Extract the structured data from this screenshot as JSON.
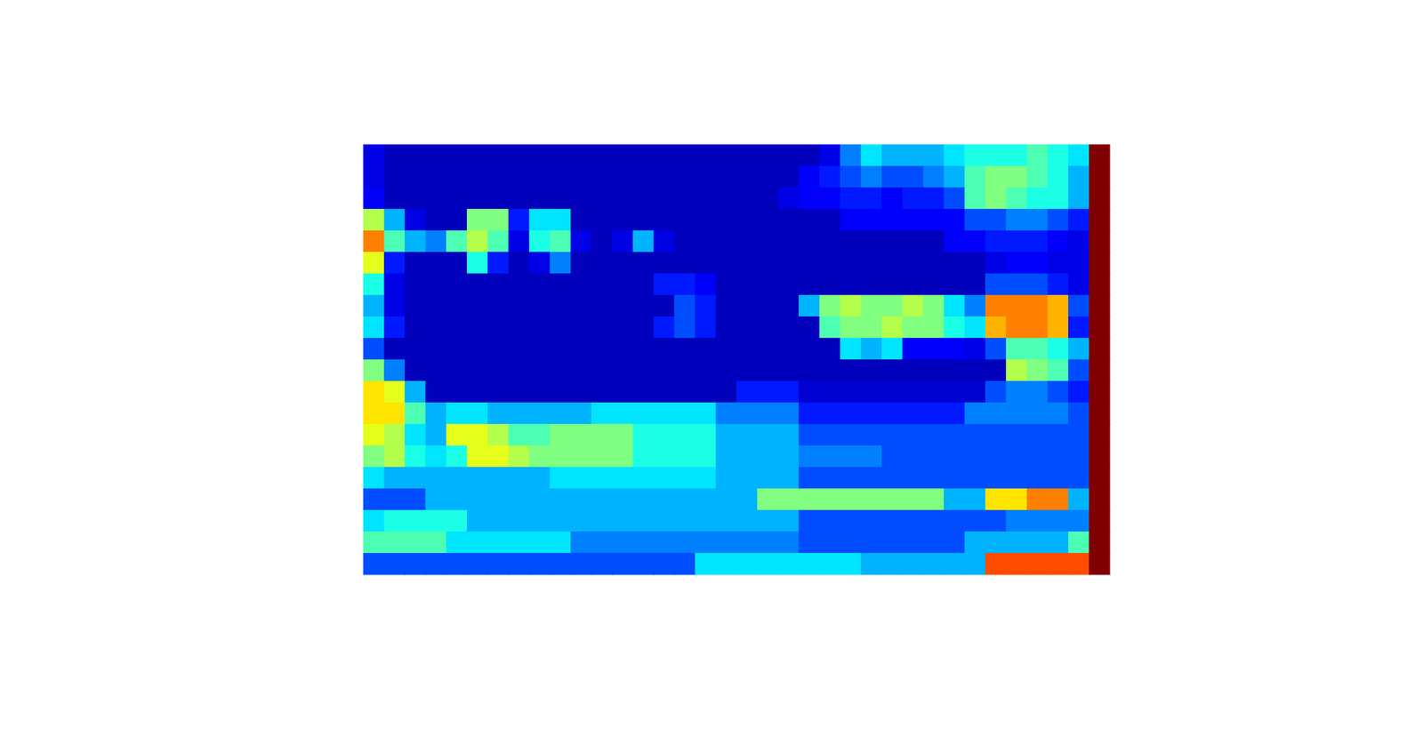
{
  "chart_data": {
    "type": "heatmap",
    "tick_labels": false,
    "zlim": [
      0,
      1
    ],
    "cells": [
      [
        0.1,
        0.06,
        0.06,
        0.06,
        0.06,
        0.06,
        0.06,
        0.06,
        0.06,
        0.06,
        0.06,
        0.06,
        0.06,
        0.06,
        0.06,
        0.06,
        0.06,
        0.06,
        0.06,
        0.06,
        0.06,
        0.06,
        0.1,
        0.25,
        0.35,
        0.3,
        0.3,
        0.3,
        0.35,
        0.4,
        0.4,
        0.4,
        0.45,
        0.4,
        0.35,
        1
      ],
      [
        0.1,
        0.06,
        0.06,
        0.06,
        0.06,
        0.06,
        0.06,
        0.06,
        0.06,
        0.06,
        0.06,
        0.06,
        0.06,
        0.06,
        0.06,
        0.06,
        0.06,
        0.06,
        0.06,
        0.06,
        0.06,
        0.12,
        0.15,
        0.2,
        0.25,
        0.2,
        0.2,
        0.25,
        0.3,
        0.45,
        0.5,
        0.5,
        0.45,
        0.4,
        0.3,
        1
      ],
      [
        0.12,
        0.06,
        0.06,
        0.06,
        0.06,
        0.06,
        0.06,
        0.06,
        0.06,
        0.06,
        0.06,
        0.06,
        0.06,
        0.06,
        0.06,
        0.06,
        0.06,
        0.06,
        0.06,
        0.06,
        0.1,
        0.12,
        0.12,
        0.15,
        0.15,
        0.12,
        0.15,
        0.15,
        0.2,
        0.45,
        0.5,
        0.45,
        0.4,
        0.4,
        0.3,
        1
      ],
      [
        0.55,
        0.3,
        0.1,
        0.06,
        0.06,
        0.5,
        0.5,
        0.15,
        0.35,
        0.35,
        0.06,
        0.06,
        0.06,
        0.06,
        0.06,
        0.06,
        0.06,
        0.06,
        0.06,
        0.06,
        0.06,
        0.06,
        0.06,
        0.12,
        0.12,
        0.12,
        0.12,
        0.12,
        0.12,
        0.2,
        0.2,
        0.25,
        0.25,
        0.2,
        0.15,
        1
      ],
      [
        0.75,
        0.45,
        0.3,
        0.25,
        0.45,
        0.55,
        0.45,
        0.1,
        0.4,
        0.45,
        0.1,
        0.06,
        0.1,
        0.3,
        0.1,
        0.06,
        0.06,
        0.06,
        0.06,
        0.06,
        0.06,
        0.06,
        0.06,
        0.06,
        0.06,
        0.06,
        0.06,
        0.06,
        0.12,
        0.12,
        0.15,
        0.15,
        0.15,
        0.12,
        0.1,
        1
      ],
      [
        0.6,
        0.15,
        0.06,
        0.06,
        0.06,
        0.4,
        0.15,
        0.06,
        0.1,
        0.25,
        0.06,
        0.06,
        0.06,
        0.06,
        0.06,
        0.06,
        0.06,
        0.06,
        0.06,
        0.06,
        0.06,
        0.06,
        0.06,
        0.06,
        0.06,
        0.06,
        0.06,
        0.06,
        0.06,
        0.06,
        0.1,
        0.12,
        0.12,
        0.1,
        0.1,
        1
      ],
      [
        0.4,
        0.1,
        0.06,
        0.06,
        0.06,
        0.06,
        0.06,
        0.06,
        0.06,
        0.06,
        0.06,
        0.06,
        0.06,
        0.06,
        0.15,
        0.15,
        0.12,
        0.06,
        0.06,
        0.06,
        0.06,
        0.06,
        0.06,
        0.06,
        0.06,
        0.06,
        0.06,
        0.06,
        0.06,
        0.06,
        0.2,
        0.2,
        0.2,
        0.15,
        0.1,
        1
      ],
      [
        0.3,
        0.1,
        0.06,
        0.06,
        0.06,
        0.06,
        0.06,
        0.06,
        0.06,
        0.06,
        0.06,
        0.06,
        0.06,
        0.06,
        0.06,
        0.2,
        0.15,
        0.06,
        0.06,
        0.06,
        0.06,
        0.3,
        0.5,
        0.55,
        0.5,
        0.5,
        0.55,
        0.5,
        0.35,
        0.25,
        0.75,
        0.75,
        0.75,
        0.7,
        0.2,
        1
      ],
      [
        0.35,
        0.15,
        0.06,
        0.06,
        0.06,
        0.06,
        0.06,
        0.06,
        0.06,
        0.06,
        0.06,
        0.06,
        0.06,
        0.06,
        0.15,
        0.2,
        0.15,
        0.06,
        0.06,
        0.06,
        0.06,
        0.06,
        0.45,
        0.5,
        0.5,
        0.55,
        0.5,
        0.5,
        0.4,
        0.35,
        0.7,
        0.75,
        0.75,
        0.7,
        0.15,
        1
      ],
      [
        0.2,
        0.06,
        0.06,
        0.06,
        0.06,
        0.06,
        0.06,
        0.06,
        0.06,
        0.06,
        0.06,
        0.06,
        0.06,
        0.06,
        0.06,
        0.06,
        0.06,
        0.06,
        0.06,
        0.06,
        0.06,
        0.06,
        0.06,
        0.35,
        0.3,
        0.35,
        0.12,
        0.12,
        0.12,
        0.1,
        0.2,
        0.45,
        0.45,
        0.4,
        0.3,
        1
      ],
      [
        0.5,
        0.25,
        0.06,
        0.06,
        0.06,
        0.06,
        0.06,
        0.06,
        0.06,
        0.06,
        0.06,
        0.06,
        0.06,
        0.06,
        0.06,
        0.06,
        0.06,
        0.06,
        0.06,
        0.06,
        0.06,
        0.06,
        0.06,
        0.06,
        0.06,
        0.06,
        0.06,
        0.06,
        0.06,
        0.06,
        0.06,
        0.55,
        0.5,
        0.45,
        0.2,
        1
      ],
      [
        0.65,
        0.6,
        0.3,
        0.06,
        0.06,
        0.06,
        0.06,
        0.06,
        0.06,
        0.06,
        0.06,
        0.06,
        0.06,
        0.06,
        0.06,
        0.06,
        0.06,
        0.06,
        0.15,
        0.15,
        0.15,
        0.08,
        0.08,
        0.08,
        0.08,
        0.08,
        0.08,
        0.08,
        0.08,
        0.08,
        0.2,
        0.25,
        0.25,
        0.2,
        0.15,
        1
      ],
      [
        0.65,
        0.65,
        0.45,
        0.3,
        0.35,
        0.35,
        0.3,
        0.3,
        0.3,
        0.3,
        0.3,
        0.35,
        0.35,
        0.35,
        0.35,
        0.35,
        0.35,
        0.25,
        0.25,
        0.25,
        0.25,
        0.15,
        0.15,
        0.15,
        0.15,
        0.15,
        0.15,
        0.15,
        0.15,
        0.25,
        0.25,
        0.25,
        0.25,
        0.25,
        0.2,
        1
      ],
      [
        0.6,
        0.55,
        0.35,
        0.3,
        0.6,
        0.6,
        0.55,
        0.45,
        0.45,
        0.5,
        0.5,
        0.5,
        0.5,
        0.4,
        0.4,
        0.4,
        0.4,
        0.3,
        0.3,
        0.3,
        0.3,
        0.2,
        0.2,
        0.2,
        0.2,
        0.2,
        0.2,
        0.2,
        0.2,
        0.2,
        0.2,
        0.2,
        0.2,
        0.2,
        0.2,
        1
      ],
      [
        0.5,
        0.55,
        0.4,
        0.35,
        0.4,
        0.6,
        0.6,
        0.55,
        0.5,
        0.5,
        0.5,
        0.5,
        0.5,
        0.4,
        0.4,
        0.4,
        0.4,
        0.3,
        0.3,
        0.3,
        0.3,
        0.25,
        0.25,
        0.25,
        0.25,
        0.2,
        0.2,
        0.2,
        0.2,
        0.2,
        0.2,
        0.2,
        0.2,
        0.2,
        0.2,
        1
      ],
      [
        0.35,
        0.3,
        0.3,
        0.3,
        0.3,
        0.3,
        0.3,
        0.3,
        0.3,
        0.35,
        0.35,
        0.35,
        0.35,
        0.35,
        0.35,
        0.35,
        0.35,
        0.3,
        0.3,
        0.3,
        0.3,
        0.2,
        0.2,
        0.2,
        0.2,
        0.2,
        0.2,
        0.2,
        0.2,
        0.2,
        0.2,
        0.2,
        0.2,
        0.2,
        0.2,
        1
      ],
      [
        0.2,
        0.2,
        0.2,
        0.3,
        0.3,
        0.3,
        0.3,
        0.3,
        0.3,
        0.3,
        0.3,
        0.3,
        0.3,
        0.3,
        0.3,
        0.3,
        0.3,
        0.3,
        0.3,
        0.5,
        0.5,
        0.5,
        0.5,
        0.5,
        0.5,
        0.5,
        0.5,
        0.5,
        0.3,
        0.3,
        0.65,
        0.65,
        0.75,
        0.75,
        0.3,
        1
      ],
      [
        0.35,
        0.4,
        0.4,
        0.4,
        0.4,
        0.3,
        0.3,
        0.3,
        0.3,
        0.3,
        0.3,
        0.3,
        0.3,
        0.3,
        0.3,
        0.3,
        0.3,
        0.3,
        0.3,
        0.3,
        0.3,
        0.2,
        0.2,
        0.2,
        0.2,
        0.2,
        0.2,
        0.2,
        0.2,
        0.2,
        0.2,
        0.25,
        0.25,
        0.25,
        0.25,
        1
      ],
      [
        0.45,
        0.45,
        0.45,
        0.45,
        0.35,
        0.35,
        0.35,
        0.35,
        0.35,
        0.35,
        0.25,
        0.25,
        0.25,
        0.25,
        0.25,
        0.25,
        0.25,
        0.25,
        0.25,
        0.25,
        0.25,
        0.2,
        0.2,
        0.2,
        0.2,
        0.2,
        0.2,
        0.2,
        0.2,
        0.3,
        0.3,
        0.3,
        0.3,
        0.3,
        0.45,
        1
      ],
      [
        0.2,
        0.2,
        0.2,
        0.2,
        0.2,
        0.2,
        0.2,
        0.2,
        0.2,
        0.2,
        0.2,
        0.2,
        0.2,
        0.2,
        0.2,
        0.2,
        0.35,
        0.35,
        0.35,
        0.35,
        0.35,
        0.35,
        0.35,
        0.35,
        0.3,
        0.3,
        0.3,
        0.3,
        0.3,
        0.3,
        0.8,
        0.8,
        0.8,
        0.8,
        0.8,
        1
      ]
    ]
  }
}
